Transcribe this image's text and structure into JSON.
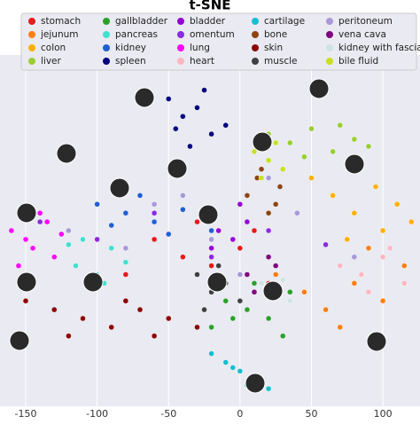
{
  "chart_data": {
    "type": "scatter",
    "title": "t-SNE",
    "xlim": [
      -168,
      126
    ],
    "ylim": [
      -100,
      100
    ],
    "xticks": [
      -150,
      -100,
      -50,
      0,
      50,
      100
    ],
    "grid": true,
    "series": [
      {
        "name": "stomach",
        "color": "#e41a1c",
        "x": [
          -60,
          -40,
          -20,
          0,
          10,
          -80,
          -30,
          20
        ],
        "values": [
          -5,
          -15,
          -20,
          -10,
          0,
          -25,
          5,
          -30
        ]
      },
      {
        "name": "jejunum",
        "color": "#ff7f0e",
        "x": [
          25,
          45,
          60,
          80,
          100,
          115,
          70,
          90
        ],
        "values": [
          -25,
          -35,
          -45,
          -30,
          -40,
          -20,
          -55,
          -10
        ]
      },
      {
        "name": "colon",
        "color": "#ffb000",
        "x": [
          50,
          65,
          80,
          95,
          110,
          120,
          75,
          100
        ],
        "values": [
          30,
          20,
          10,
          25,
          15,
          5,
          -5,
          0
        ]
      },
      {
        "name": "liver",
        "color": "#9acd32",
        "x": [
          20,
          35,
          50,
          65,
          80,
          90,
          45,
          70
        ],
        "values": [
          55,
          50,
          58,
          45,
          52,
          48,
          42,
          60
        ]
      },
      {
        "name": "gallbladder",
        "color": "#2ca02c",
        "x": [
          -10,
          5,
          20,
          35,
          -20,
          10,
          30,
          -5
        ],
        "values": [
          -40,
          -45,
          -50,
          -35,
          -55,
          -30,
          -60,
          -50
        ]
      },
      {
        "name": "pancreas",
        "color": "#40e0d0",
        "x": [
          -130,
          -115,
          -100,
          -90,
          -110,
          -95,
          -120,
          -80
        ],
        "values": [
          -15,
          -20,
          -25,
          -10,
          -5,
          -30,
          -8,
          -18
        ]
      },
      {
        "name": "kidney",
        "color": "#1f5fd4",
        "x": [
          -100,
          -80,
          -60,
          -40,
          -20,
          -70,
          -50,
          -90
        ],
        "values": [
          15,
          10,
          5,
          12,
          0,
          20,
          -2,
          3
        ]
      },
      {
        "name": "spleen",
        "color": "#000080",
        "x": [
          -50,
          -40,
          -30,
          -20,
          -10,
          -35,
          -25,
          -45
        ],
        "values": [
          75,
          65,
          70,
          55,
          60,
          48,
          80,
          58
        ]
      },
      {
        "name": "bladder",
        "color": "#9400d3",
        "x": [
          -25,
          -15,
          -5,
          5,
          -20,
          0
        ],
        "values": [
          10,
          0,
          -5,
          5,
          -10,
          15
        ]
      },
      {
        "name": "omentum",
        "color": "#8a2be2",
        "x": [
          -140,
          -100,
          -60,
          -20,
          20,
          60
        ],
        "values": [
          5,
          -5,
          10,
          -15,
          0,
          -8
        ]
      },
      {
        "name": "lung",
        "color": "#ff00ff",
        "x": [
          -160,
          -150,
          -140,
          -130,
          -155,
          -135,
          -145,
          -125
        ],
        "values": [
          0,
          -5,
          10,
          -15,
          -20,
          5,
          -10,
          -2
        ]
      },
      {
        "name": "heart",
        "color": "#ffb6c1",
        "x": [
          70,
          85,
          100,
          115,
          90,
          105
        ],
        "values": [
          -20,
          -25,
          -15,
          -30,
          -35,
          -10
        ]
      },
      {
        "name": "cartilage",
        "color": "#17becf",
        "x": [
          -20,
          -10,
          0,
          10,
          20,
          -5,
          5
        ],
        "values": [
          -70,
          -75,
          -80,
          -85,
          -90,
          -78,
          -88
        ]
      },
      {
        "name": "bone",
        "color": "#8b4513",
        "x": [
          5,
          12,
          20,
          28,
          15,
          25
        ],
        "values": [
          20,
          30,
          10,
          25,
          35,
          15
        ]
      },
      {
        "name": "skin",
        "color": "#8b0000",
        "x": [
          -150,
          -130,
          -110,
          -90,
          -70,
          -50,
          -30,
          -120,
          -80,
          -60
        ],
        "values": [
          -40,
          -45,
          -50,
          -55,
          -45,
          -50,
          -55,
          -60,
          -40,
          -60
        ]
      },
      {
        "name": "muscle",
        "color": "#404040",
        "x": [
          -30,
          -20,
          -10,
          0,
          -25,
          -15
        ],
        "values": [
          -25,
          -35,
          -30,
          -40,
          -45,
          -20
        ]
      },
      {
        "name": "peritoneum",
        "color": "#a898d8",
        "x": [
          -120,
          -80,
          -40,
          0,
          40,
          80,
          -100,
          -60,
          -20,
          20
        ],
        "values": [
          0,
          -10,
          20,
          -25,
          10,
          -15,
          -30,
          15,
          -5,
          30
        ]
      },
      {
        "name": "vena cava",
        "color": "#800080",
        "x": [
          5,
          15,
          25,
          10,
          20
        ],
        "values": [
          -25,
          -30,
          -20,
          -35,
          -15
        ]
      },
      {
        "name": "kidney with fascia",
        "color": "#cfe3e3",
        "x": [
          15,
          25,
          35,
          30
        ],
        "values": [
          -30,
          -35,
          -40,
          -28
        ]
      },
      {
        "name": "bile fluid",
        "color": "#c8e020",
        "x": [
          10,
          20,
          30,
          25,
          15
        ],
        "values": [
          45,
          40,
          35,
          50,
          30
        ]
      }
    ]
  }
}
